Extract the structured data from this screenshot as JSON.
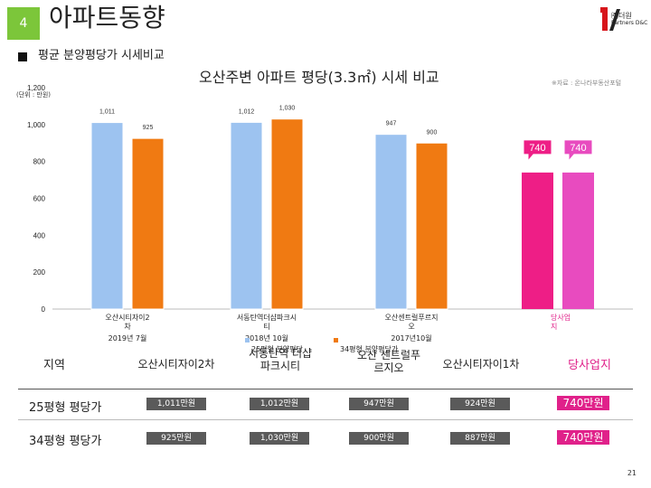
{
  "header": {
    "page_badge": "4",
    "page_title": "아파트동향",
    "logo_name": "㈜더원",
    "logo_sub": "Partners D&C"
  },
  "section_title": "평균 분양평당가 시세비교",
  "chart_title": "오산주변 아파트 평당(3.3㎡) 시세 비교",
  "source_note": "※자료 : 온나라부동산포털",
  "unit_note": "(단위 : 만원)",
  "chart_data": {
    "type": "bar",
    "ylim": [
      0,
      1200
    ],
    "yticks": [
      "0",
      "200",
      "400",
      "600",
      "800",
      "1,000",
      "1,200"
    ],
    "categories": [
      {
        "name": "오산시티자이2차",
        "date": "2019년 7월"
      },
      {
        "name": "서동탄역더샵파크시티",
        "date": "2018년 10월"
      },
      {
        "name": "오산센트럴푸르지오",
        "date": "2017년10월"
      },
      {
        "name": "당사업지",
        "date": ""
      }
    ],
    "series": [
      {
        "name": "25평형 분양평당",
        "values": [
          1011,
          1012,
          947,
          740
        ],
        "labels": [
          "1,011",
          "1,012",
          "947",
          "740"
        ]
      },
      {
        "name": "34평형 분양평당가",
        "values": [
          925,
          1030,
          900,
          740
        ],
        "labels": [
          "925",
          "1,030",
          "900",
          "740"
        ]
      }
    ],
    "colors": {
      "series1": "#9dc3f0",
      "series2": "#f07a12",
      "site1": "#ee1e86",
      "site2": "#e84bbf"
    },
    "grid": false
  },
  "table": {
    "header_label": "지역",
    "columns": [
      "오산시티자이2차",
      "서동탄역 더샵파크시티",
      "오산 센트럴푸르지오",
      "오산시티자이1차",
      "당사업지"
    ],
    "rows": [
      {
        "label": "25평형 평당가",
        "values": [
          "1,011만원",
          "1,012만원",
          "947만원",
          "924만원",
          "740만원"
        ]
      },
      {
        "label": "34평형 평당가",
        "values": [
          "925만원",
          "1,030만원",
          "900만원",
          "887만원",
          "740만원"
        ]
      }
    ]
  },
  "page_number": "21"
}
